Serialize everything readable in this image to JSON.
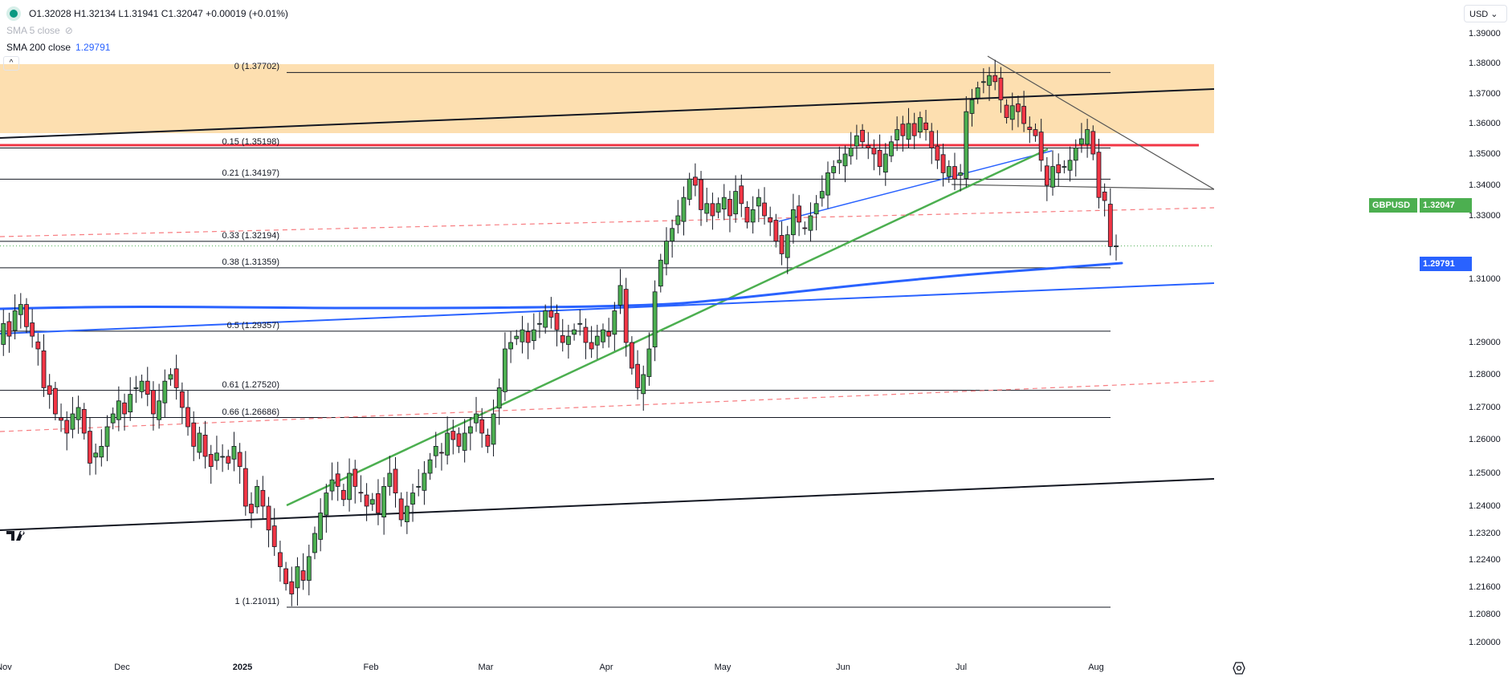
{
  "legend": {
    "ohlc": "O1.32028  H1.32134  L1.31941  C1.32047  +0.00019 (+0.01%)",
    "sma5": "SMA 5 close",
    "sma200": "SMA 200 close",
    "sma200_value": "1.29791",
    "collapse": "^"
  },
  "currency": "USD",
  "symbol_label": "GBPUSD",
  "price_label": "1.32047",
  "sma_label": "1.29791",
  "colors": {
    "up": "#4caf50",
    "down": "#f23645",
    "sma": "#2962ff",
    "zone": "#fddfb0"
  },
  "chart_data": {
    "type": "candlestick",
    "x_labels": [
      "Nov",
      "Dec",
      "2025",
      "Feb",
      "Mar",
      "Apr",
      "May",
      "Jun",
      "Jul",
      "Aug"
    ],
    "y_ticks": [
      "1.39000",
      "1.38000",
      "1.37000",
      "1.36000",
      "1.35000",
      "1.34000",
      "1.33000",
      "1.31000",
      "1.29000",
      "1.28000",
      "1.27000",
      "1.26000",
      "1.25000",
      "1.24000",
      "1.23200",
      "1.22400",
      "1.21600",
      "1.20800",
      "1.20000"
    ],
    "fib_levels": [
      {
        "label": "0 (1.37702)",
        "value": 1.37702
      },
      {
        "label": "0.15 (1.35198)",
        "value": 1.35198
      },
      {
        "label": "0.21 (1.34197)",
        "value": 1.34197
      },
      {
        "label": "0.33 (1.32194)",
        "value": 1.32194
      },
      {
        "label": "0.38 (1.31359)",
        "value": 1.31359
      },
      {
        "label": "0.5 (1.29357)",
        "value": 1.29357
      },
      {
        "label": "0.61 (1.27520)",
        "value": 1.2752
      },
      {
        "label": "0.66 (1.26686)",
        "value": 1.26686
      },
      {
        "label": "1 (1.21011)",
        "value": 1.21011
      }
    ],
    "closes": [
      1.29,
      1.296,
      1.292,
      1.3,
      1.302,
      1.295,
      1.292,
      1.288,
      1.276,
      1.274,
      1.268,
      1.266,
      1.262,
      1.268,
      1.27,
      1.262,
      1.253,
      1.256,
      1.258,
      1.264,
      1.268,
      1.272,
      1.268,
      1.274,
      1.276,
      1.278,
      1.274,
      1.268,
      1.272,
      1.278,
      1.28,
      1.276,
      1.27,
      1.264,
      1.258,
      1.262,
      1.255,
      1.252,
      1.256,
      1.255,
      1.253,
      1.258,
      1.252,
      1.24,
      1.238,
      1.246,
      1.24,
      1.233,
      1.228,
      1.222,
      1.217,
      1.214,
      1.222,
      1.218,
      1.225,
      1.232,
      1.238,
      1.244,
      1.248,
      1.246,
      1.242,
      1.25,
      1.246,
      1.244,
      1.24,
      1.242,
      1.238,
      1.246,
      1.25,
      1.244,
      1.236,
      1.24,
      1.244,
      1.246,
      1.25,
      1.254,
      1.258,
      1.256,
      1.262,
      1.26,
      1.258,
      1.262,
      1.264,
      1.268,
      1.262,
      1.258,
      1.268,
      1.276,
      1.288,
      1.29,
      1.292,
      1.294,
      1.29,
      1.294,
      1.296,
      1.3,
      1.298,
      1.294,
      1.29,
      1.292,
      1.294,
      1.296,
      1.29,
      1.288,
      1.292,
      1.294,
      1.292,
      1.3,
      1.308,
      1.29,
      1.282,
      1.276,
      1.28,
      1.288,
      1.306,
      1.316,
      1.322,
      1.326,
      1.33,
      1.336,
      1.342,
      1.34,
      1.332,
      1.334,
      1.33,
      1.334,
      1.336,
      1.33,
      1.338,
      1.334,
      1.328,
      1.332,
      1.336,
      1.33,
      1.328,
      1.322,
      1.318,
      1.324,
      1.332,
      1.328,
      1.326,
      1.33,
      1.334,
      1.338,
      1.344,
      1.346,
      1.348,
      1.35,
      1.352,
      1.356,
      1.354,
      1.352,
      1.35,
      1.346,
      1.35,
      1.354,
      1.358,
      1.356,
      1.36,
      1.356,
      1.362,
      1.358,
      1.352,
      1.348,
      1.344,
      1.346,
      1.342,
      1.344,
      1.364,
      1.368,
      1.372,
      1.374,
      1.376,
      1.374,
      1.368,
      1.362,
      1.366,
      1.364,
      1.36,
      1.358,
      1.356,
      1.348,
      1.34,
      1.346,
      1.344,
      1.346,
      1.348,
      1.352,
      1.355,
      1.358,
      1.35,
      1.336,
      1.335,
      1.32028,
      1.32047
    ],
    "last_close": 1.32047,
    "sma200_last": 1.29791
  }
}
